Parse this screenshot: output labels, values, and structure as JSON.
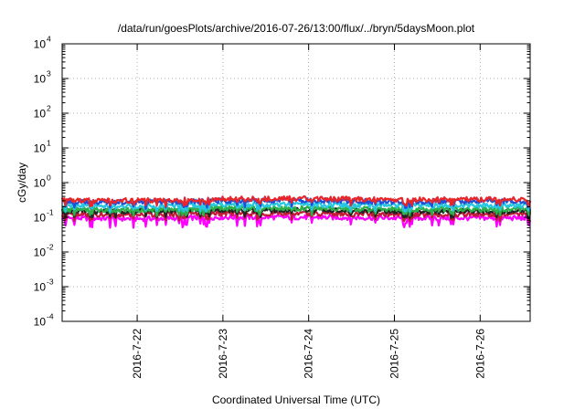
{
  "chart_data": {
    "type": "line",
    "title": "/data/run/goesPlots/archive/2016-07-26/13:00/flux/../bryn/5daysMoon.plot",
    "xlabel": "Coordinated Universal Time (UTC)",
    "ylabel": "cGy/day",
    "yscale": "log",
    "ylim": [
      0.0001,
      10000
    ],
    "xlim": [
      "2016-07-21 03:00",
      "2016-07-26 14:00"
    ],
    "grid": true,
    "legend": "none",
    "x_ticks": [
      "2016-7-22",
      "2016-7-23",
      "2016-7-24",
      "2016-7-25",
      "2016-7-26"
    ],
    "y_ticks": [
      {
        "base": "10",
        "exp": "-4"
      },
      {
        "base": "10",
        "exp": "-3"
      },
      {
        "base": "10",
        "exp": "-2"
      },
      {
        "base": "10",
        "exp": "-1"
      },
      {
        "base": "10",
        "exp": "0"
      },
      {
        "base": "10",
        "exp": "1"
      },
      {
        "base": "10",
        "exp": "2"
      },
      {
        "base": "10",
        "exp": "3"
      },
      {
        "base": "10",
        "exp": "4"
      }
    ],
    "series": [
      {
        "color": "#e8262a",
        "level": 0.33,
        "x": [
          "2016-07-21 03:00",
          "2016-07-22 00:00",
          "2016-07-23 00:00",
          "2016-07-24 00:00",
          "2016-07-25 00:00",
          "2016-07-26 00:00",
          "2016-07-26 14:00"
        ],
        "values": [
          0.32,
          0.3,
          0.34,
          0.35,
          0.32,
          0.33,
          0.33
        ]
      },
      {
        "color": "#1f4fd6",
        "level": 0.29,
        "x": [
          "2016-07-21 03:00",
          "2016-07-22 00:00",
          "2016-07-23 00:00",
          "2016-07-24 00:00",
          "2016-07-25 00:00",
          "2016-07-26 00:00",
          "2016-07-26 14:00"
        ],
        "values": [
          0.29,
          0.27,
          0.3,
          0.31,
          0.28,
          0.29,
          0.29
        ]
      },
      {
        "color": "#26c6e0",
        "level": 0.22,
        "x": [
          "2016-07-21 03:00",
          "2016-07-22 00:00",
          "2016-07-23 00:00",
          "2016-07-24 00:00",
          "2016-07-25 00:00",
          "2016-07-26 00:00",
          "2016-07-26 14:00"
        ],
        "values": [
          0.22,
          0.21,
          0.23,
          0.23,
          0.22,
          0.22,
          0.22
        ]
      },
      {
        "color": "#2bb04a",
        "level": 0.17,
        "x": [
          "2016-07-21 03:00",
          "2016-07-22 00:00",
          "2016-07-23 00:00",
          "2016-07-24 00:00",
          "2016-07-25 00:00",
          "2016-07-26 00:00",
          "2016-07-26 14:00"
        ],
        "values": [
          0.17,
          0.16,
          0.18,
          0.18,
          0.17,
          0.17,
          0.17
        ]
      },
      {
        "color": "#222222",
        "level": 0.15,
        "x": [
          "2016-07-21 03:00",
          "2016-07-22 00:00",
          "2016-07-23 00:00",
          "2016-07-24 00:00",
          "2016-07-25 00:00",
          "2016-07-26 00:00",
          "2016-07-26 14:00"
        ],
        "values": [
          0.15,
          0.15,
          0.16,
          0.16,
          0.15,
          0.15,
          0.15
        ]
      },
      {
        "color": "#c41a3a",
        "level": 0.12,
        "x": [
          "2016-07-21 03:00",
          "2016-07-22 00:00",
          "2016-07-23 00:00",
          "2016-07-24 00:00",
          "2016-07-25 00:00",
          "2016-07-26 00:00",
          "2016-07-26 14:00"
        ],
        "values": [
          0.12,
          0.12,
          0.13,
          0.13,
          0.12,
          0.12,
          0.12
        ]
      },
      {
        "color": "#ff00ff",
        "level": 0.095,
        "x": [
          "2016-07-21 03:00",
          "2016-07-22 00:00",
          "2016-07-23 00:00",
          "2016-07-24 00:00",
          "2016-07-25 00:00",
          "2016-07-26 00:00",
          "2016-07-26 14:00"
        ],
        "values": [
          0.095,
          0.09,
          0.1,
          0.1,
          0.095,
          0.095,
          0.095
        ]
      }
    ]
  }
}
